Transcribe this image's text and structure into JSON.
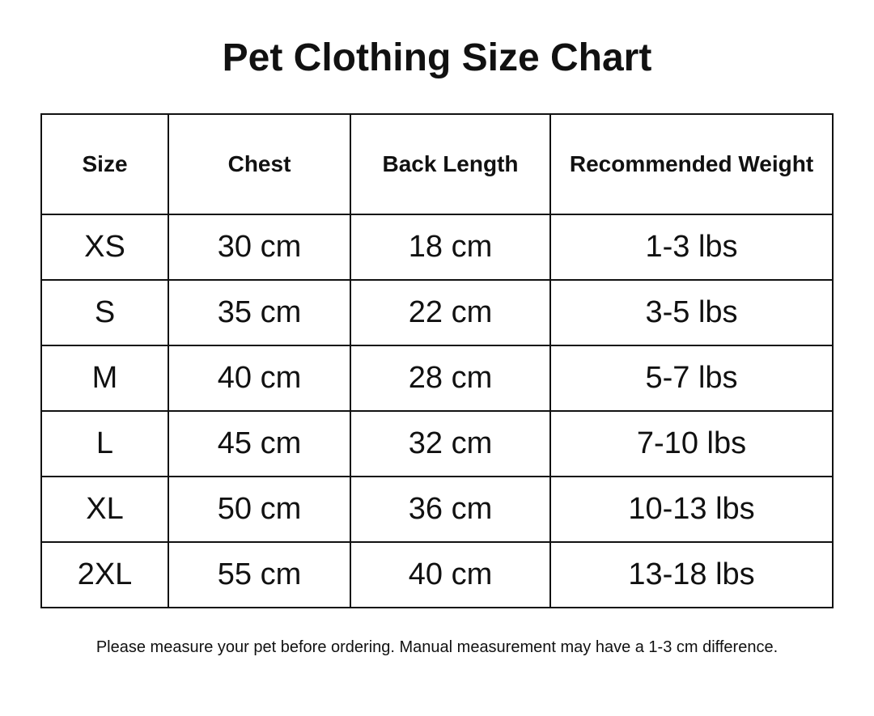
{
  "header": {
    "title": "Pet Clothing Size Chart"
  },
  "table": {
    "columns": [
      "Size",
      "Chest",
      "Back Length",
      "Recommended Weight"
    ],
    "rows": [
      [
        "XS",
        "30 cm",
        "18 cm",
        "1-3 lbs"
      ],
      [
        "S",
        "35 cm",
        "22 cm",
        "3-5 lbs"
      ],
      [
        "M",
        "40 cm",
        "28 cm",
        "5-7 lbs"
      ],
      [
        "L",
        "45 cm",
        "32 cm",
        "7-10 lbs"
      ],
      [
        "XL",
        "50 cm",
        "36 cm",
        "10-13 lbs"
      ],
      [
        "2XL",
        "55 cm",
        "40 cm",
        "13-18 lbs"
      ]
    ]
  },
  "footer": {
    "note": "Please measure your pet before ordering. Manual measurement may have a 1-3 cm difference."
  }
}
